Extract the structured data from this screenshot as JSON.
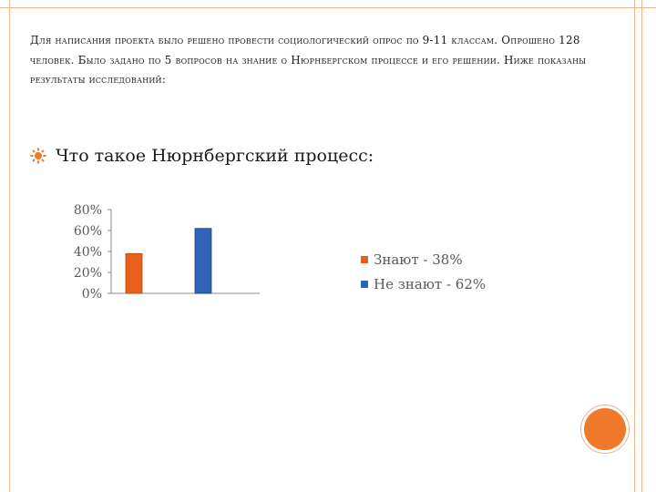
{
  "intro_text": "Для написания проекта было решено провести социологический опрос по 9-11 классам. Опрошено 128 человек. Было задано по 5 вопросов на знание о Нюрнбергском процессе и его решении. Ниже показаны результаты исследований:",
  "bullet": {
    "icon": "sun-bullet-icon",
    "text": "Что такое Нюрнбергский процесс:"
  },
  "colors": {
    "accent": "#ef7a2b",
    "frame": "#f0b58e",
    "series1": "#e8601c",
    "series2": "#2f63b8"
  },
  "chart_data": {
    "type": "bar",
    "categories": [
      ""
    ],
    "series": [
      {
        "name": "Знают - 38%",
        "values": [
          38
        ]
      },
      {
        "name": "Не знают - 62%",
        "values": [
          62
        ]
      }
    ],
    "title": "",
    "xlabel": "",
    "ylabel": "",
    "ylim": [
      0,
      80
    ],
    "yticks": [
      "0%",
      "20%",
      "40%",
      "60%",
      "80%"
    ],
    "grid": false,
    "legend": "right"
  }
}
